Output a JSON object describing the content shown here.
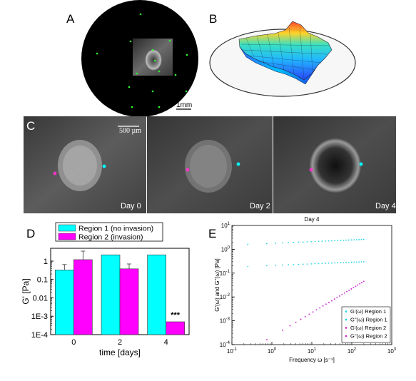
{
  "panels": {
    "a": {
      "letter": "A",
      "scale_label": "1mm",
      "dots": [
        [
          197,
          20
        ],
        [
          136,
          75
        ],
        [
          183,
          58
        ],
        [
          214,
          70
        ],
        [
          238,
          57
        ],
        [
          262,
          77
        ],
        [
          217,
          85
        ],
        [
          223,
          100
        ],
        [
          192,
          103
        ],
        [
          246,
          105
        ],
        [
          181,
          122
        ],
        [
          214,
          128
        ],
        [
          261,
          128
        ],
        [
          223,
          150
        ],
        [
          185,
          150
        ]
      ]
    },
    "b": {
      "letter": "B"
    },
    "c": {
      "letter": "C",
      "scale_label": "500 µm",
      "day_labels": [
        "Day 0",
        "Day 2",
        "Day 4"
      ]
    },
    "d": {
      "letter": "D"
    },
    "e": {
      "letter": "E"
    }
  },
  "chart_data": [
    {
      "type": "bar",
      "ylabel": "G' [Pa]",
      "xlabel": "time [days]",
      "y_scale": "log",
      "ylim": [
        0.0001,
        5
      ],
      "y_ticks": [
        0.0001,
        0.001,
        0.01,
        0.1,
        1
      ],
      "y_tick_labels": [
        "1E-4",
        "1E-3",
        "0.01",
        "0.1",
        "1"
      ],
      "categories": [
        "0",
        "2",
        "4"
      ],
      "series": [
        {
          "name": "Region 1 (no invasion)",
          "color": "#00ffff",
          "values": [
            0.33,
            2.2,
            2.2
          ],
          "errors_high": [
            0.65,
            2.2,
            2.3
          ]
        },
        {
          "name": "Region 2 (invasion)",
          "color": "#ff00ff",
          "values": [
            1.2,
            0.38,
            0.0005
          ],
          "errors_high": [
            3.5,
            0.7,
            0.0005
          ]
        }
      ],
      "annotation": "***",
      "legend_position": "top"
    },
    {
      "type": "scatter",
      "title": "Day 4",
      "xlabel": "Frequency ω [s⁻¹]",
      "ylabel": "G'(ω) and G''(ω) [Pa]",
      "x_scale": "log",
      "y_scale": "log",
      "xlim": [
        0.1,
        1000
      ],
      "ylim": [
        0.0001,
        10
      ],
      "x_ticks": [
        0.1,
        1,
        10,
        100,
        1000
      ],
      "y_ticks": [
        0.0001,
        0.001,
        0.01,
        0.1,
        1,
        10
      ],
      "series": [
        {
          "name": "G'(ω) Region 1",
          "color": "#29d6e6",
          "start": [
            0.25,
            1.6
          ],
          "end": [
            200,
            2.6
          ]
        },
        {
          "name": "G''(ω) Region 1",
          "color": "#29d6e6",
          "start": [
            0.25,
            0.19
          ],
          "end": [
            200,
            0.3
          ]
        },
        {
          "name": "G'(ω) Region 2",
          "color": "#cc33cc",
          "start": [
            0.75,
            0.00016
          ],
          "end": [
            200,
            0.045
          ]
        },
        {
          "name": "G''(ω) Region 2",
          "color": "#cc33cc",
          "start": [
            0.75,
            0.00016
          ],
          "end": [
            200,
            0.045
          ]
        }
      ],
      "legend_position": "bottom-right"
    }
  ]
}
